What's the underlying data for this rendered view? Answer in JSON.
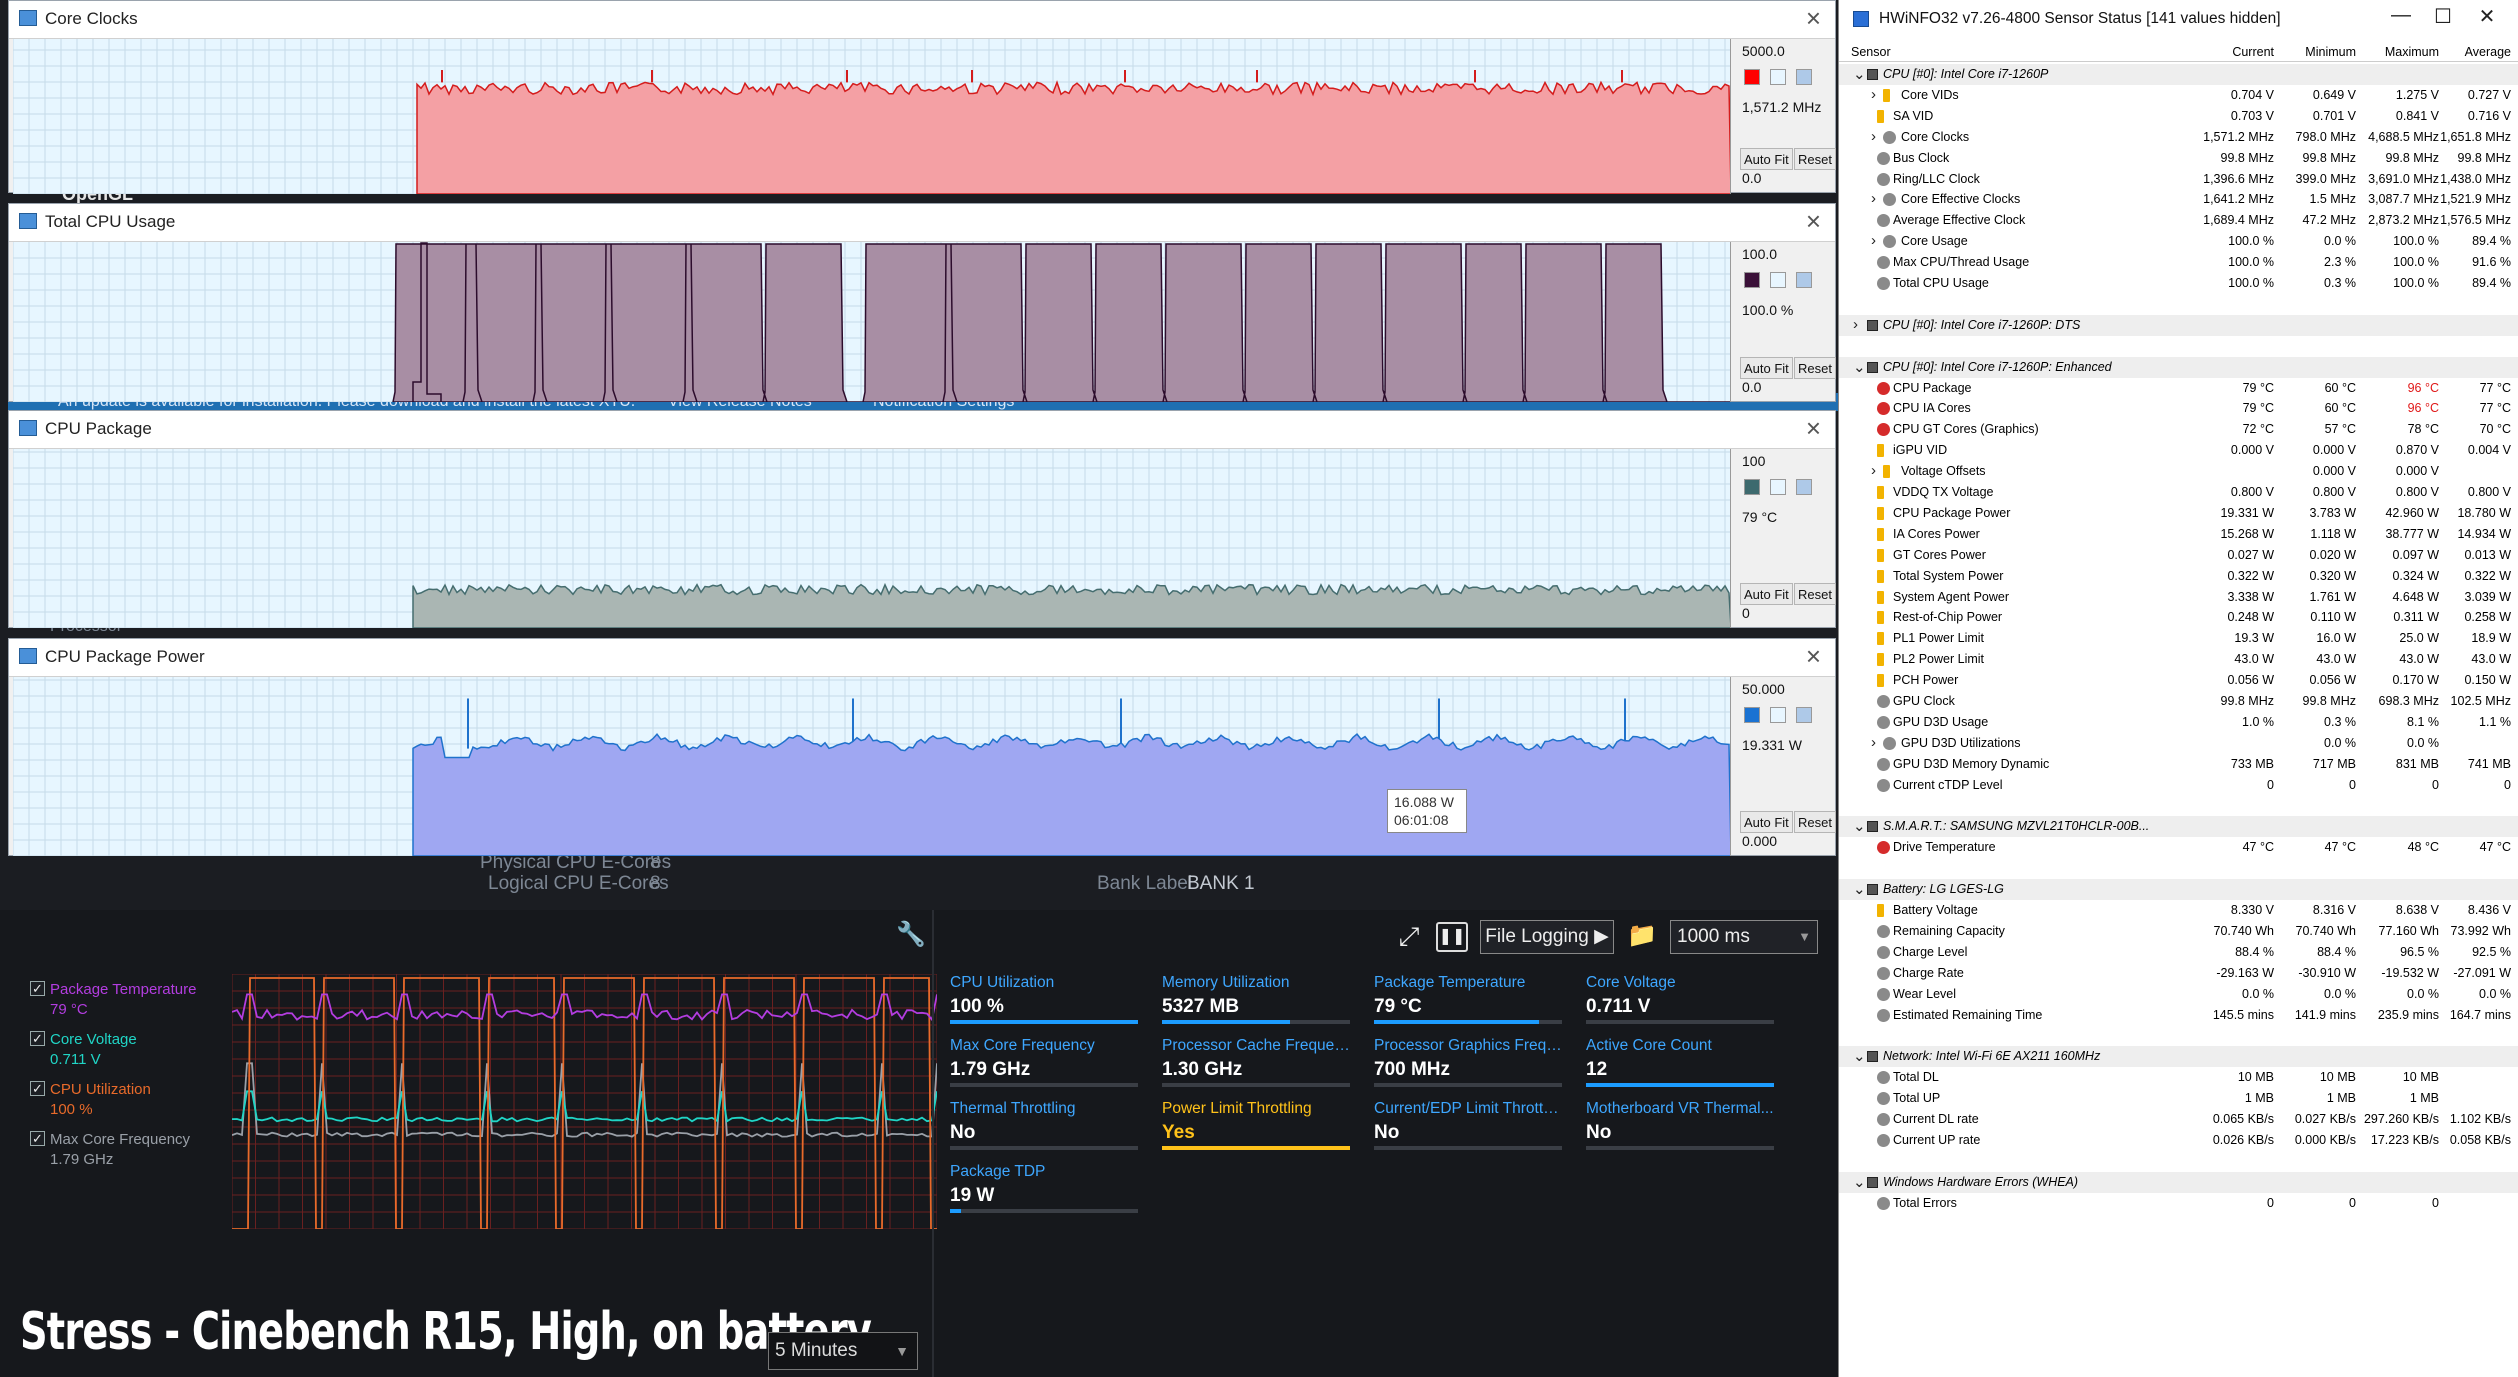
{
  "background": {
    "ghost_texts": [
      "OpenGL",
      "An update is available for installation. Please download and install the latest XTU.",
      "View Release Notes",
      "Notification Settings",
      "Processor",
      "Physical CPU E-Cores",
      "8",
      "Logical CPU E-Cores",
      "8",
      "Bank Label",
      "BANK 1"
    ]
  },
  "graphs": [
    {
      "title": "Core Clocks",
      "top": "5000.0",
      "current": "1,571.2 MHz",
      "bottom": "0.0",
      "swatch": "#ff0000",
      "fill": "#f4a0a4",
      "stroke": "#d41c1c",
      "shape": "clock",
      "start": 0.235,
      "base": 0.73,
      "level": 0.72
    },
    {
      "title": "Total CPU Usage",
      "top": "100.0",
      "current": "100.0 %",
      "bottom": "0.0",
      "swatch": "#3a1038",
      "fill": "#a88ea4",
      "stroke": "#2c0c2c",
      "shape": "usage",
      "start": 0.233,
      "base": 0,
      "level": 0
    },
    {
      "title": "CPU Package",
      "top": "100",
      "current": "79 °C",
      "bottom": "0",
      "swatch": "#3d6a6e",
      "fill": "#aab6b3",
      "stroke": "#456d6f",
      "shape": "temp",
      "start": 0.233,
      "base": 0.21,
      "level": 0.22
    },
    {
      "title": "CPU Package Power",
      "top": "50.000",
      "current": "19.331 W",
      "bottom": "0.000",
      "swatch": "#1a72d2",
      "fill": "#9fa7f2",
      "stroke": "#1f72cc",
      "shape": "power",
      "start": 0.233,
      "base": 0.58,
      "level": 0.6
    }
  ],
  "graph_buttons": {
    "auto_fit": "Auto Fit",
    "reset": "Reset"
  },
  "tooltip": {
    "value": "16.088 W",
    "time": "06:01:08"
  },
  "xtu": {
    "legend": [
      {
        "name": "Package Temperature",
        "value": "79 °C",
        "color": "#b33de0",
        "checked": true
      },
      {
        "name": "Core Voltage",
        "value": "0.711 V",
        "color": "#20d5c6",
        "checked": true
      },
      {
        "name": "CPU Utilization",
        "value": "100 %",
        "color": "#e86a2a",
        "checked": true
      },
      {
        "name": "Max Core Frequency",
        "value": "1.79 GHz",
        "color": "#9aa0a8",
        "checked": true
      }
    ],
    "caption": "Stress - Cinebench R15, High, on battery",
    "time_range": "5 Minutes",
    "toolbar": {
      "file_logging": "File Logging ▶",
      "interval": "1000 ms"
    },
    "tiles": [
      {
        "label": "CPU Utilization",
        "value": "100 %",
        "fill": 1.0
      },
      {
        "label": "Memory Utilization",
        "value": "5327  MB",
        "fill": 0.68
      },
      {
        "label": "Package Temperature",
        "value": "79 °C",
        "fill": 0.88
      },
      {
        "label": "Core Voltage",
        "value": "0.711 V",
        "fill": 0.0
      },
      {
        "label": "Max Core Frequency",
        "value": "1.79 GHz",
        "fill": 0.0
      },
      {
        "label": "Processor Cache Frequency",
        "value": "1.30 GHz",
        "fill": 0.0
      },
      {
        "label": "Processor Graphics Freque...",
        "value": "700 MHz",
        "fill": 0.0
      },
      {
        "label": "Active Core Count",
        "value": "12",
        "fill": 1.0
      },
      {
        "label": "Thermal Throttling",
        "value": "No",
        "fill": 0.0
      },
      {
        "label": "Power Limit Throttling",
        "value": "Yes",
        "fill": 1.0,
        "warn": true
      },
      {
        "label": "Current/EDP Limit Throttli...",
        "value": "No",
        "fill": 0.0
      },
      {
        "label": "Motherboard VR Thermal...",
        "value": "No",
        "fill": 0.0
      },
      {
        "label": "Package TDP",
        "value": "19 W",
        "fill": 0.06
      }
    ]
  },
  "hwinfo": {
    "title": "HWiNFO32 v7.26-4800 Sensor Status [141 values hidden]",
    "window_buttons": [
      "—",
      "☐",
      "✕"
    ],
    "headers": [
      "Sensor",
      "Current",
      "Minimum",
      "Maximum",
      "Average"
    ],
    "rows": [
      {
        "t": "g",
        "name": "CPU [#0]: Intel Core i7-1260P",
        "exp": "open"
      },
      {
        "name": "Core VIDs",
        "icon": "bolt",
        "exp": "closed",
        "cur": "0.704 V",
        "min": "0.649 V",
        "max": "1.275 V",
        "avg": "0.727 V"
      },
      {
        "name": "SA VID",
        "icon": "bolt",
        "cur": "0.703 V",
        "min": "0.701 V",
        "max": "0.841 V",
        "avg": "0.716 V"
      },
      {
        "name": "Core Clocks",
        "icon": "circle",
        "exp": "closed",
        "cur": "1,571.2 MHz",
        "min": "798.0 MHz",
        "max": "4,688.5 MHz",
        "avg": "1,651.8 MHz"
      },
      {
        "name": "Bus Clock",
        "icon": "circle",
        "cur": "99.8 MHz",
        "min": "99.8 MHz",
        "max": "99.8 MHz",
        "avg": "99.8 MHz"
      },
      {
        "name": "Ring/LLC Clock",
        "icon": "circle",
        "cur": "1,396.6 MHz",
        "min": "399.0 MHz",
        "max": "3,691.0 MHz",
        "avg": "1,438.0 MHz"
      },
      {
        "name": "Core Effective Clocks",
        "icon": "circle",
        "exp": "closed",
        "cur": "1,641.2 MHz",
        "min": "1.5 MHz",
        "max": "3,087.7 MHz",
        "avg": "1,521.9 MHz"
      },
      {
        "name": "Average Effective Clock",
        "icon": "circle",
        "cur": "1,689.4 MHz",
        "min": "47.2 MHz",
        "max": "2,873.2 MHz",
        "avg": "1,576.5 MHz"
      },
      {
        "name": "Core Usage",
        "icon": "circle",
        "exp": "closed",
        "cur": "100.0 %",
        "min": "0.0 %",
        "max": "100.0 %",
        "avg": "89.4 %"
      },
      {
        "name": "Max CPU/Thread Usage",
        "icon": "circle",
        "cur": "100.0 %",
        "min": "2.3 %",
        "max": "100.0 %",
        "avg": "91.6 %"
      },
      {
        "name": "Total CPU Usage",
        "icon": "circle",
        "cur": "100.0 %",
        "min": "0.3 %",
        "max": "100.0 %",
        "avg": "89.4 %"
      },
      {
        "t": "s"
      },
      {
        "t": "g",
        "name": "CPU [#0]: Intel Core i7-1260P: DTS",
        "exp": "closed"
      },
      {
        "t": "s"
      },
      {
        "t": "g",
        "name": "CPU [#0]: Intel Core i7-1260P: Enhanced",
        "exp": "open"
      },
      {
        "name": "CPU Package",
        "icon": "therm",
        "cur": "79 °C",
        "min": "60 °C",
        "max": "96 °C",
        "avg": "77 °C",
        "maxred": true
      },
      {
        "name": "CPU IA Cores",
        "icon": "therm",
        "cur": "79 °C",
        "min": "60 °C",
        "max": "96 °C",
        "avg": "77 °C",
        "maxred": true
      },
      {
        "name": "CPU GT Cores (Graphics)",
        "icon": "therm",
        "cur": "72 °C",
        "min": "57 °C",
        "max": "78 °C",
        "avg": "70 °C"
      },
      {
        "name": "iGPU VID",
        "icon": "bolt",
        "cur": "0.000 V",
        "min": "0.000 V",
        "max": "0.870 V",
        "avg": "0.004 V"
      },
      {
        "name": "Voltage Offsets",
        "icon": "bolt",
        "exp": "closed",
        "cur": "",
        "min": "0.000 V",
        "max": "0.000 V",
        "avg": ""
      },
      {
        "name": "VDDQ TX Voltage",
        "icon": "bolt",
        "cur": "0.800 V",
        "min": "0.800 V",
        "max": "0.800 V",
        "avg": "0.800 V"
      },
      {
        "name": "CPU Package Power",
        "icon": "bolt",
        "cur": "19.331 W",
        "min": "3.783 W",
        "max": "42.960 W",
        "avg": "18.780 W"
      },
      {
        "name": "IA Cores Power",
        "icon": "bolt",
        "cur": "15.268 W",
        "min": "1.118 W",
        "max": "38.777 W",
        "avg": "14.934 W"
      },
      {
        "name": "GT Cores Power",
        "icon": "bolt",
        "cur": "0.027 W",
        "min": "0.020 W",
        "max": "0.097 W",
        "avg": "0.013 W"
      },
      {
        "name": "Total System Power",
        "icon": "bolt",
        "cur": "0.322 W",
        "min": "0.320 W",
        "max": "0.324 W",
        "avg": "0.322 W"
      },
      {
        "name": "System Agent Power",
        "icon": "bolt",
        "cur": "3.338 W",
        "min": "1.761 W",
        "max": "4.648 W",
        "avg": "3.039 W"
      },
      {
        "name": "Rest-of-Chip Power",
        "icon": "bolt",
        "cur": "0.248 W",
        "min": "0.110 W",
        "max": "0.311 W",
        "avg": "0.258 W"
      },
      {
        "name": "PL1 Power Limit",
        "icon": "bolt",
        "cur": "19.3 W",
        "min": "16.0 W",
        "max": "25.0 W",
        "avg": "18.9 W"
      },
      {
        "name": "PL2 Power Limit",
        "icon": "bolt",
        "cur": "43.0 W",
        "min": "43.0 W",
        "max": "43.0 W",
        "avg": "43.0 W"
      },
      {
        "name": "PCH Power",
        "icon": "bolt",
        "cur": "0.056 W",
        "min": "0.056 W",
        "max": "0.170 W",
        "avg": "0.150 W"
      },
      {
        "name": "GPU Clock",
        "icon": "circle",
        "cur": "99.8 MHz",
        "min": "99.8 MHz",
        "max": "698.3 MHz",
        "avg": "102.5 MHz"
      },
      {
        "name": "GPU D3D Usage",
        "icon": "circle",
        "cur": "1.0 %",
        "min": "0.3 %",
        "max": "8.1 %",
        "avg": "1.1 %"
      },
      {
        "name": "GPU D3D Utilizations",
        "icon": "circle",
        "exp": "closed",
        "cur": "",
        "min": "0.0 %",
        "max": "0.0 %",
        "avg": ""
      },
      {
        "name": "GPU D3D Memory Dynamic",
        "icon": "circle",
        "cur": "733 MB",
        "min": "717 MB",
        "max": "831 MB",
        "avg": "741 MB"
      },
      {
        "name": "Current cTDP Level",
        "icon": "circle",
        "cur": "0",
        "min": "0",
        "max": "0",
        "avg": "0"
      },
      {
        "t": "s"
      },
      {
        "t": "g",
        "name": "S.M.A.R.T.: SAMSUNG MZVL21T0HCLR-00B...",
        "exp": "open"
      },
      {
        "name": "Drive Temperature",
        "icon": "therm",
        "cur": "47 °C",
        "min": "47 °C",
        "max": "48 °C",
        "avg": "47 °C"
      },
      {
        "t": "s"
      },
      {
        "t": "g",
        "name": "Battery: LG  LGES-LG",
        "exp": "open"
      },
      {
        "name": "Battery Voltage",
        "icon": "bolt",
        "cur": "8.330 V",
        "min": "8.316 V",
        "max": "8.638 V",
        "avg": "8.436 V"
      },
      {
        "name": "Remaining Capacity",
        "icon": "circle",
        "cur": "70.740 Wh",
        "min": "70.740 Wh",
        "max": "77.160 Wh",
        "avg": "73.992 Wh"
      },
      {
        "name": "Charge Level",
        "icon": "circle",
        "cur": "88.4 %",
        "min": "88.4 %",
        "max": "96.5 %",
        "avg": "92.5 %"
      },
      {
        "name": "Charge Rate",
        "icon": "circle",
        "cur": "-29.163 W",
        "min": "-30.910 W",
        "max": "-19.532 W",
        "avg": "-27.091 W"
      },
      {
        "name": "Wear Level",
        "icon": "circle",
        "cur": "0.0 %",
        "min": "0.0 %",
        "max": "0.0 %",
        "avg": "0.0 %"
      },
      {
        "name": "Estimated Remaining Time",
        "icon": "circle",
        "cur": "145.5 mins",
        "min": "141.9 mins",
        "max": "235.9 mins",
        "avg": "164.7 mins"
      },
      {
        "t": "s"
      },
      {
        "t": "g",
        "name": "Network: Intel Wi-Fi 6E AX211 160MHz",
        "exp": "open"
      },
      {
        "name": "Total DL",
        "icon": "circle",
        "cur": "10 MB",
        "min": "10 MB",
        "max": "10 MB",
        "avg": ""
      },
      {
        "name": "Total UP",
        "icon": "circle",
        "cur": "1 MB",
        "min": "1 MB",
        "max": "1 MB",
        "avg": ""
      },
      {
        "name": "Current DL rate",
        "icon": "circle",
        "cur": "0.065 KB/s",
        "min": "0.027 KB/s",
        "max": "297.260 KB/s",
        "avg": "1.102 KB/s"
      },
      {
        "name": "Current UP rate",
        "icon": "circle",
        "cur": "0.026 KB/s",
        "min": "0.000 KB/s",
        "max": "17.223 KB/s",
        "avg": "0.058 KB/s"
      },
      {
        "t": "s"
      },
      {
        "t": "g",
        "name": "Windows Hardware Errors (WHEA)",
        "exp": "open"
      },
      {
        "name": "Total Errors",
        "icon": "circle",
        "cur": "0",
        "min": "0",
        "max": "0",
        "avg": ""
      }
    ]
  }
}
